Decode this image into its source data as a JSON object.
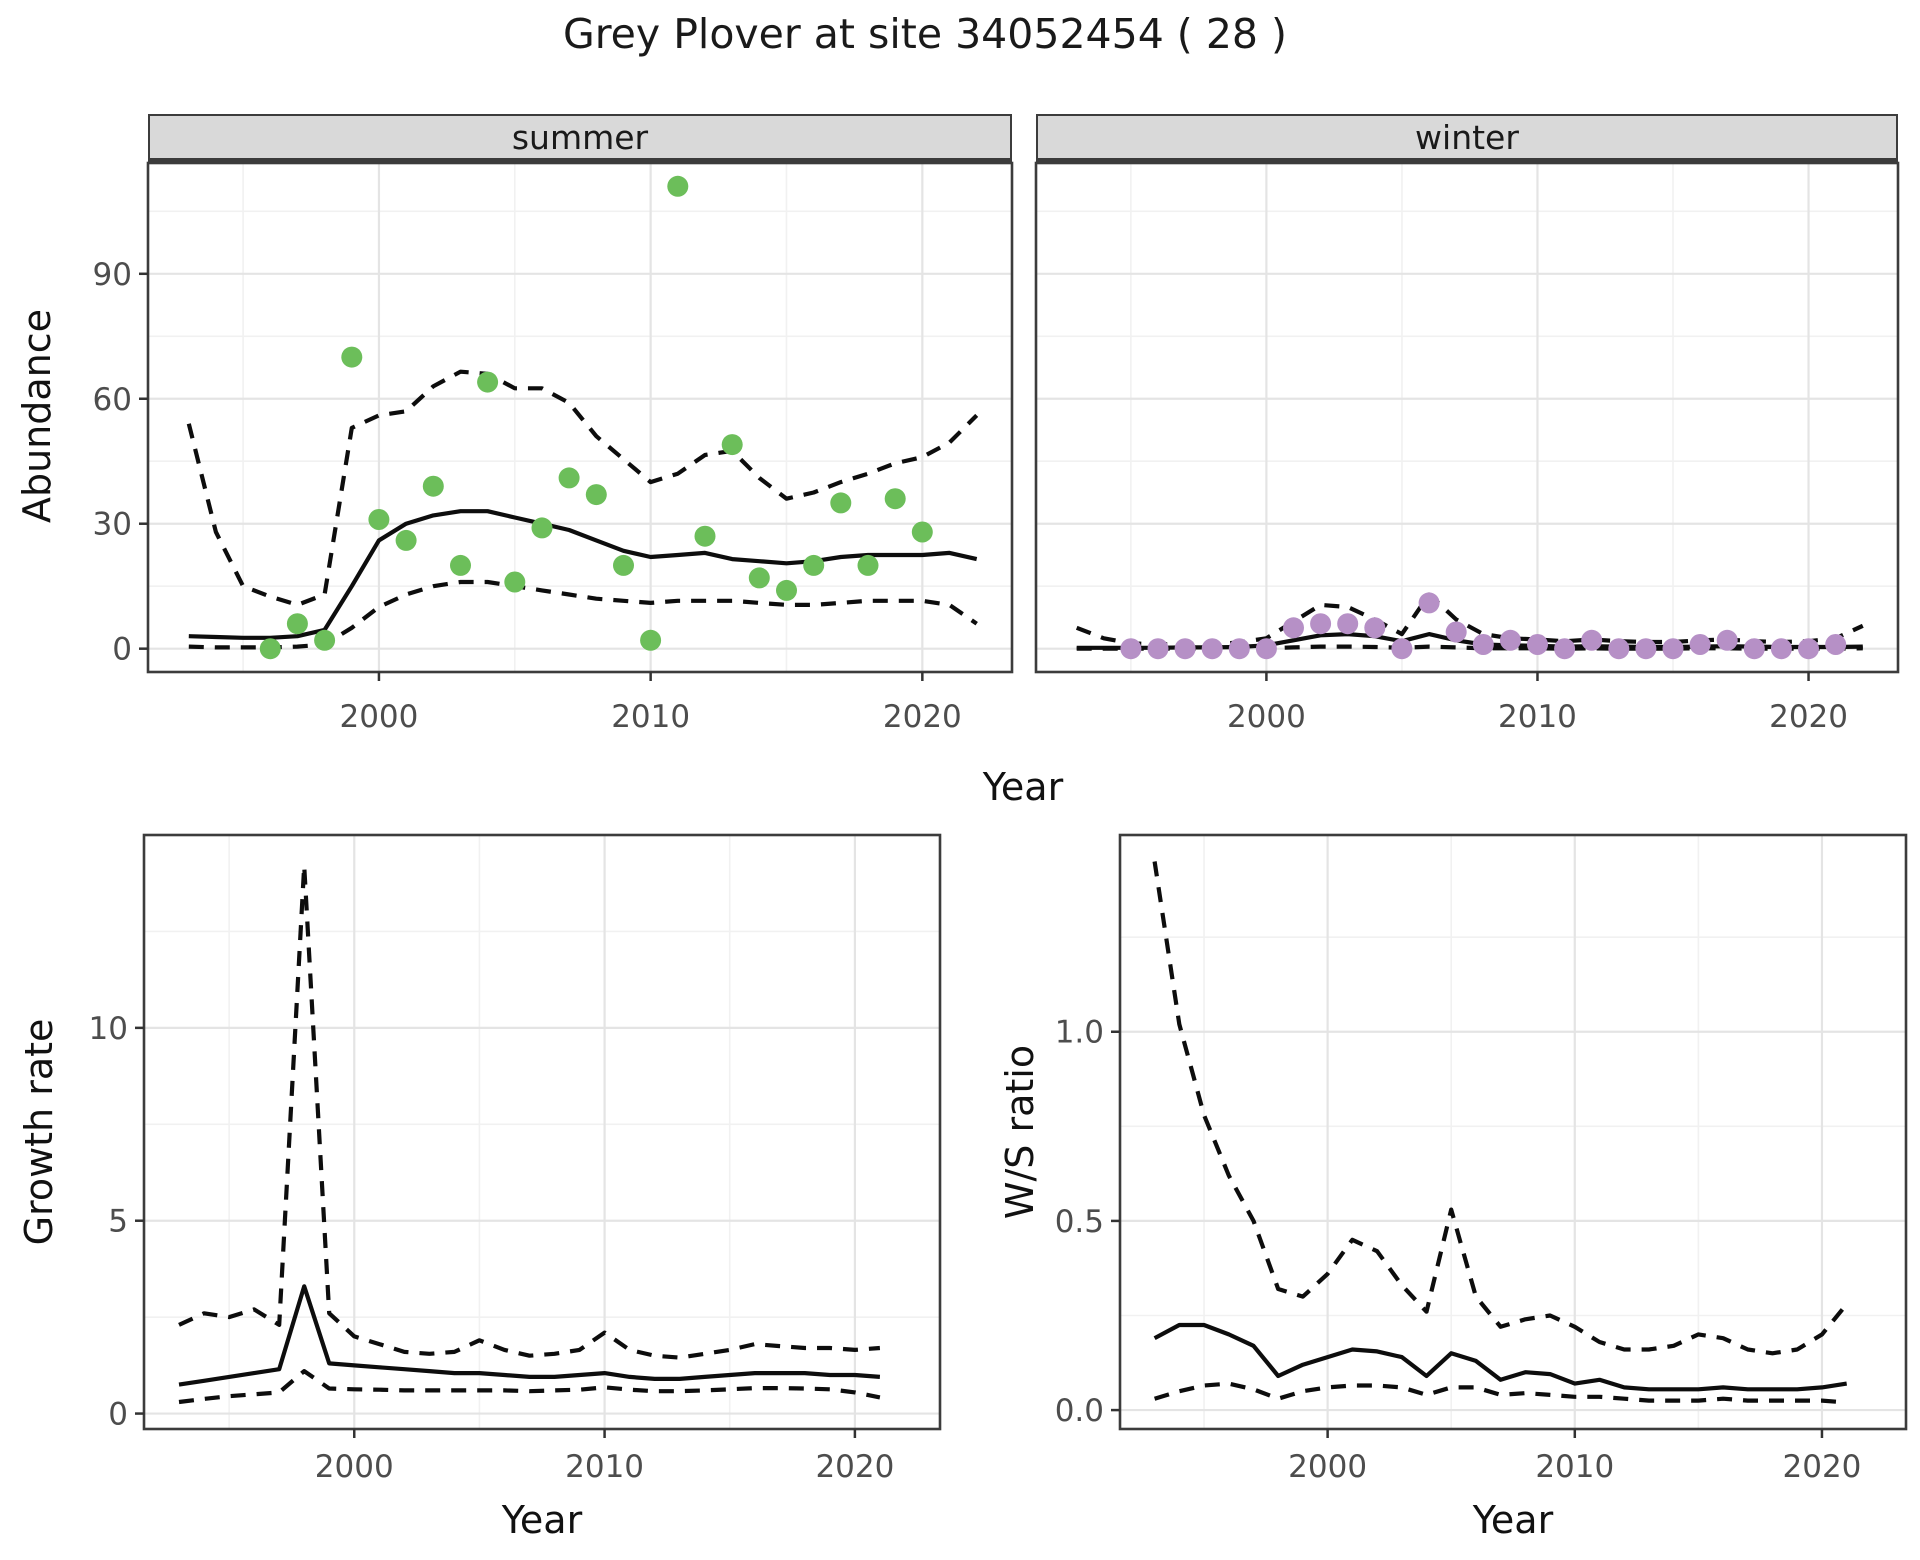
{
  "title": "Grey Plover at site 34052454 ( 28 )",
  "facets": [
    {
      "label": "summer"
    },
    {
      "label": "winter"
    }
  ],
  "axes": {
    "x_label": "Year",
    "abundance_label": "Abundance",
    "growth_label": "Growth rate",
    "ws_label": "W/S ratio"
  },
  "colors": {
    "summer_point": "#6CBE5A",
    "winter_point": "#B690C6",
    "line": "#0d0d0d",
    "grid_major": "#e4e4e4",
    "grid_minor": "#f1f1f1",
    "panel_border": "#3c3c3c",
    "strip_bg": "#d9d9d9",
    "tick_label": "#4d4d4d",
    "tick_mark": "#333333"
  },
  "chart_data": [
    {
      "id": "abundance-summer",
      "type": "scatter",
      "facet": "summer",
      "xlabel": "Year",
      "ylabel": "Abundance",
      "xlim": [
        1991.5,
        2023.3
      ],
      "ylim": [
        -5.6,
        116.6
      ],
      "xticks": {
        "major": [
          2000,
          2010,
          2020
        ],
        "minor": [
          1995,
          2005,
          2015
        ],
        "labels": [
          "2000",
          "2010",
          "2020"
        ]
      },
      "yticks": {
        "major": [
          0,
          30,
          60,
          90
        ],
        "minor": [
          15,
          45,
          75,
          105
        ],
        "labels": [
          "0",
          "30",
          "60",
          "90"
        ]
      },
      "show_y_labels": true,
      "points": {
        "years": [
          1996,
          1997,
          1998,
          1999,
          2000,
          2001,
          2002,
          2003,
          2004,
          2005,
          2006,
          2007,
          2008,
          2009,
          2010,
          2011,
          2012,
          2013,
          2014,
          2015,
          2016,
          2017,
          2018,
          2019,
          2020
        ],
        "values": [
          0,
          6,
          2,
          70,
          31,
          26,
          39,
          20,
          64,
          16,
          29,
          41,
          37,
          20,
          2,
          111,
          27,
          49,
          17,
          14,
          20,
          35,
          20,
          36,
          28
        ]
      },
      "series": [
        {
          "name": "fit",
          "style": "solid",
          "years": [
            1993,
            1994,
            1995,
            1996,
            1997,
            1998,
            1999,
            2000,
            2001,
            2002,
            2003,
            2004,
            2005,
            2006,
            2007,
            2008,
            2009,
            2010,
            2011,
            2012,
            2013,
            2014,
            2015,
            2016,
            2017,
            2018,
            2019,
            2020,
            2021,
            2022
          ],
          "values": [
            3,
            2.8,
            2.6,
            2.6,
            3,
            4.5,
            15,
            26,
            30,
            32,
            33,
            33,
            31.5,
            30,
            28.5,
            26,
            23.5,
            22,
            22.5,
            23,
            21.5,
            21,
            20.5,
            21,
            22,
            22.5,
            22.5,
            22.5,
            23,
            21.5
          ]
        },
        {
          "name": "upper-ci",
          "style": "dashed",
          "years": [
            1993,
            1994,
            1995,
            1996,
            1997,
            1998,
            1999,
            2000,
            2001,
            2002,
            2003,
            2004,
            2005,
            2006,
            2007,
            2008,
            2009,
            2010,
            2011,
            2012,
            2013,
            2014,
            2015,
            2016,
            2017,
            2018,
            2019,
            2020,
            2021,
            2022
          ],
          "values": [
            54,
            28,
            15,
            12.5,
            10.5,
            13,
            53,
            56,
            57,
            63,
            66.5,
            66,
            62.5,
            62.5,
            59,
            51,
            45.5,
            40,
            42,
            46.5,
            47.5,
            41,
            36,
            37.5,
            40,
            42,
            44.5,
            46,
            49.5,
            56
          ]
        },
        {
          "name": "lower-ci",
          "style": "dashed",
          "years": [
            1993,
            1994,
            1995,
            1996,
            1997,
            1998,
            1999,
            2000,
            2001,
            2002,
            2003,
            2004,
            2005,
            2006,
            2007,
            2008,
            2009,
            2010,
            2011,
            2012,
            2013,
            2014,
            2015,
            2016,
            2017,
            2018,
            2019,
            2020,
            2021,
            2022
          ],
          "values": [
            0.5,
            0.3,
            0.3,
            0.3,
            0.5,
            1,
            5,
            10,
            13,
            15,
            16,
            16,
            15,
            14,
            13,
            12,
            11.5,
            11,
            11.5,
            11.5,
            11.5,
            11,
            10.5,
            10.5,
            11,
            11.5,
            11.5,
            11.5,
            10.5,
            6
          ]
        }
      ]
    },
    {
      "id": "abundance-winter",
      "type": "scatter",
      "facet": "winter",
      "xlabel": "Year",
      "ylabel": "Abundance",
      "xlim": [
        1991.5,
        2023.3
      ],
      "ylim": [
        -5.6,
        116.6
      ],
      "xticks": {
        "major": [
          2000,
          2010,
          2020
        ],
        "minor": [
          1995,
          2005,
          2015
        ],
        "labels": [
          "2000",
          "2010",
          "2020"
        ]
      },
      "yticks": {
        "major": [
          0,
          30,
          60,
          90
        ],
        "minor": [
          15,
          45,
          75,
          105
        ],
        "labels": [
          "0",
          "30",
          "60",
          "90"
        ]
      },
      "show_y_labels": false,
      "points": {
        "years": [
          1995,
          1996,
          1997,
          1998,
          1999,
          2000,
          2001,
          2002,
          2003,
          2004,
          2005,
          2006,
          2007,
          2008,
          2009,
          2010,
          2011,
          2012,
          2013,
          2014,
          2015,
          2016,
          2017,
          2018,
          2019,
          2020,
          2021
        ],
        "values": [
          0,
          0,
          0,
          0,
          0,
          0,
          5,
          6,
          6,
          5,
          0,
          11,
          4,
          1,
          2,
          1,
          0,
          2,
          0,
          0,
          0,
          1,
          2,
          0,
          0,
          0,
          1
        ]
      },
      "series": [
        {
          "name": "fit",
          "style": "solid",
          "years": [
            1993,
            1994,
            1995,
            1996,
            1997,
            1998,
            1999,
            2000,
            2001,
            2002,
            2003,
            2004,
            2005,
            2006,
            2007,
            2008,
            2009,
            2010,
            2011,
            2012,
            2013,
            2014,
            2015,
            2016,
            2017,
            2018,
            2019,
            2020,
            2021,
            2022
          ],
          "values": [
            0.2,
            0.2,
            0.2,
            0.2,
            0.3,
            0.3,
            0.4,
            0.8,
            2,
            3.2,
            3.5,
            3,
            1.8,
            3.5,
            2,
            1,
            0.8,
            0.7,
            0.5,
            0.6,
            0.5,
            0.4,
            0.4,
            0.5,
            0.6,
            0.5,
            0.4,
            0.4,
            0.4,
            0.5
          ]
        },
        {
          "name": "upper-ci",
          "style": "dashed",
          "years": [
            1993,
            1994,
            1995,
            1996,
            1997,
            1998,
            1999,
            2000,
            2001,
            2002,
            2003,
            2004,
            2005,
            2006,
            2007,
            2008,
            2009,
            2010,
            2011,
            2012,
            2013,
            2014,
            2015,
            2016,
            2017,
            2018,
            2019,
            2020,
            2021,
            2022
          ],
          "values": [
            5,
            2.5,
            1.3,
            1,
            1.2,
            1,
            1.5,
            2.5,
            6.5,
            10.5,
            10,
            7,
            3.5,
            13,
            7,
            3.5,
            2.5,
            2.2,
            1.8,
            2.2,
            1.8,
            1.6,
            1.6,
            2,
            2.2,
            1.8,
            1.6,
            1.8,
            2.5,
            5.5
          ]
        },
        {
          "name": "lower-ci",
          "style": "dashed",
          "years": [
            1993,
            1994,
            1995,
            1996,
            1997,
            1998,
            1999,
            2000,
            2001,
            2002,
            2003,
            2004,
            2005,
            2006,
            2007,
            2008,
            2009,
            2010,
            2011,
            2012,
            2013,
            2014,
            2015,
            2016,
            2017,
            2018,
            2019,
            2020,
            2021,
            2022
          ],
          "values": [
            0,
            0,
            0,
            0,
            0,
            0,
            0,
            0.1,
            0.3,
            0.5,
            0.5,
            0.4,
            0.2,
            0.5,
            0.3,
            0.1,
            0.1,
            0.1,
            0,
            0.1,
            0,
            0,
            0,
            0.1,
            0.1,
            0,
            0,
            0,
            0,
            0.1
          ]
        }
      ]
    },
    {
      "id": "growth-rate",
      "type": "line",
      "facet": "",
      "xlabel": "Year",
      "ylabel": "Growth rate",
      "xlim": [
        1991.6,
        2023.4
      ],
      "ylim": [
        -0.4,
        15.0
      ],
      "xticks": {
        "major": [
          2000,
          2010,
          2020
        ],
        "minor": [
          1995,
          2005,
          2015
        ],
        "labels": [
          "2000",
          "2010",
          "2020"
        ]
      },
      "yticks": {
        "major": [
          0,
          5,
          10
        ],
        "minor": [
          2.5,
          7.5,
          12.5
        ],
        "labels": [
          "0",
          "5",
          "10"
        ]
      },
      "show_y_labels": true,
      "points": {
        "years": [],
        "values": []
      },
      "series": [
        {
          "name": "fit",
          "style": "solid",
          "years": [
            1993,
            1994,
            1995,
            1996,
            1997,
            1998,
            1999,
            2000,
            2001,
            2002,
            2003,
            2004,
            2005,
            2006,
            2007,
            2008,
            2009,
            2010,
            2011,
            2012,
            2013,
            2014,
            2015,
            2016,
            2017,
            2018,
            2019,
            2020,
            2021
          ],
          "values": [
            0.75,
            0.85,
            0.95,
            1.05,
            1.15,
            3.3,
            1.3,
            1.25,
            1.2,
            1.15,
            1.1,
            1.05,
            1.05,
            1.0,
            0.95,
            0.95,
            1.0,
            1.05,
            0.95,
            0.9,
            0.9,
            0.95,
            1.0,
            1.05,
            1.05,
            1.05,
            1.0,
            1.0,
            0.95
          ]
        },
        {
          "name": "upper-ci",
          "style": "dashed",
          "years": [
            1993,
            1994,
            1995,
            1996,
            1997,
            1998,
            1999,
            2000,
            2001,
            2002,
            2003,
            2004,
            2005,
            2006,
            2007,
            2008,
            2009,
            2010,
            2011,
            2012,
            2013,
            2014,
            2015,
            2016,
            2017,
            2018,
            2019,
            2020,
            2021
          ],
          "values": [
            2.3,
            2.6,
            2.5,
            2.7,
            2.3,
            14.2,
            2.6,
            2.0,
            1.8,
            1.6,
            1.55,
            1.6,
            1.9,
            1.65,
            1.5,
            1.55,
            1.65,
            2.1,
            1.65,
            1.5,
            1.45,
            1.55,
            1.65,
            1.8,
            1.75,
            1.7,
            1.7,
            1.65,
            1.7
          ]
        },
        {
          "name": "lower-ci",
          "style": "dashed",
          "years": [
            1993,
            1994,
            1995,
            1996,
            1997,
            1998,
            1999,
            2000,
            2001,
            2002,
            2003,
            2004,
            2005,
            2006,
            2007,
            2008,
            2009,
            2010,
            2011,
            2012,
            2013,
            2014,
            2015,
            2016,
            2017,
            2018,
            2019,
            2020,
            2021
          ],
          "values": [
            0.3,
            0.38,
            0.45,
            0.5,
            0.55,
            1.1,
            0.65,
            0.63,
            0.62,
            0.6,
            0.6,
            0.6,
            0.6,
            0.6,
            0.58,
            0.6,
            0.62,
            0.68,
            0.62,
            0.58,
            0.58,
            0.6,
            0.63,
            0.66,
            0.66,
            0.65,
            0.63,
            0.55,
            0.42
          ]
        }
      ]
    },
    {
      "id": "ws-ratio",
      "type": "line",
      "facet": "",
      "xlabel": "Year",
      "ylabel": "W/S ratio",
      "xlim": [
        1991.6,
        2023.4
      ],
      "ylim": [
        -0.05,
        1.52
      ],
      "xticks": {
        "major": [
          2000,
          2010,
          2020
        ],
        "minor": [
          1995,
          2005,
          2015
        ],
        "labels": [
          "2000",
          "2010",
          "2020"
        ]
      },
      "yticks": {
        "major": [
          0,
          0.5,
          1.0
        ],
        "minor": [
          0.25,
          0.75,
          1.25
        ],
        "labels": [
          "0.0",
          "0.5",
          "1.0"
        ]
      },
      "show_y_labels": true,
      "points": {
        "years": [],
        "values": []
      },
      "series": [
        {
          "name": "fit",
          "style": "solid",
          "years": [
            1993,
            1994,
            1995,
            1996,
            1997,
            1998,
            1999,
            2000,
            2001,
            2002,
            2003,
            2004,
            2005,
            2006,
            2007,
            2008,
            2009,
            2010,
            2011,
            2012,
            2013,
            2014,
            2015,
            2016,
            2017,
            2018,
            2019,
            2020,
            2021
          ],
          "values": [
            0.19,
            0.225,
            0.225,
            0.2,
            0.17,
            0.09,
            0.12,
            0.14,
            0.16,
            0.155,
            0.14,
            0.09,
            0.15,
            0.13,
            0.08,
            0.1,
            0.095,
            0.07,
            0.08,
            0.06,
            0.055,
            0.055,
            0.055,
            0.06,
            0.055,
            0.055,
            0.055,
            0.06,
            0.07
          ]
        },
        {
          "name": "upper-ci",
          "style": "dashed",
          "years": [
            1993,
            1994,
            1995,
            1996,
            1997,
            1998,
            1999,
            2000,
            2001,
            2002,
            2003,
            2004,
            2005,
            2006,
            2007,
            2008,
            2009,
            2010,
            2011,
            2012,
            2013,
            2014,
            2015,
            2016,
            2017,
            2018,
            2019,
            2020,
            2021
          ],
          "values": [
            1.45,
            1.02,
            0.78,
            0.62,
            0.5,
            0.32,
            0.3,
            0.36,
            0.45,
            0.42,
            0.33,
            0.26,
            0.53,
            0.3,
            0.22,
            0.24,
            0.25,
            0.22,
            0.18,
            0.16,
            0.16,
            0.17,
            0.2,
            0.19,
            0.16,
            0.15,
            0.16,
            0.2,
            0.28
          ]
        },
        {
          "name": "lower-ci",
          "style": "dashed",
          "years": [
            1993,
            1994,
            1995,
            1996,
            1997,
            1998,
            1999,
            2000,
            2001,
            2002,
            2003,
            2004,
            2005,
            2006,
            2007,
            2008,
            2009,
            2010,
            2011,
            2012,
            2013,
            2014,
            2015,
            2016,
            2017,
            2018,
            2019,
            2020,
            2021
          ],
          "values": [
            0.03,
            0.05,
            0.065,
            0.07,
            0.055,
            0.03,
            0.05,
            0.06,
            0.065,
            0.065,
            0.06,
            0.04,
            0.06,
            0.06,
            0.04,
            0.045,
            0.04,
            0.035,
            0.035,
            0.03,
            0.025,
            0.025,
            0.025,
            0.03,
            0.025,
            0.025,
            0.025,
            0.025,
            0.02
          ]
        }
      ]
    }
  ]
}
